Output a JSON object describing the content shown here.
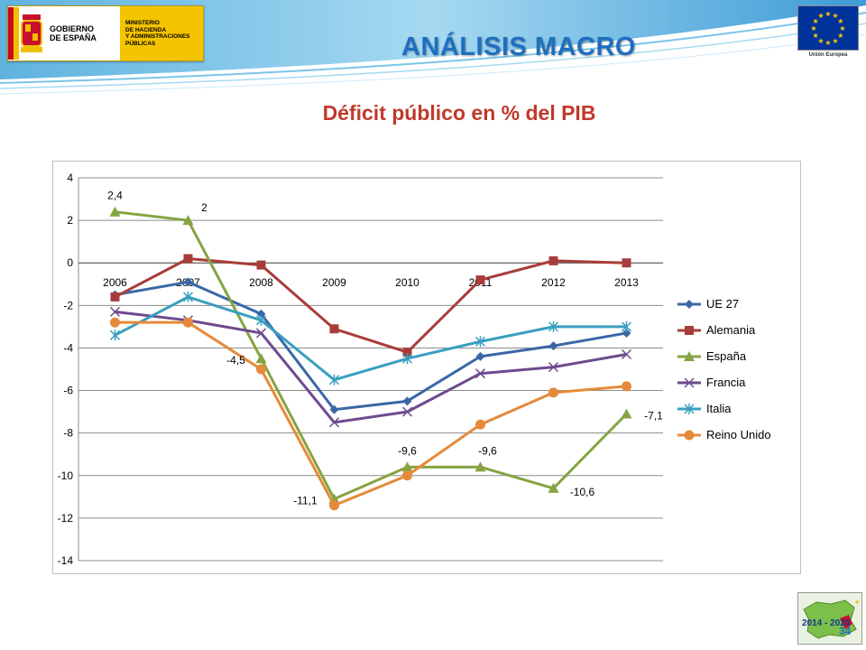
{
  "header": {
    "gov_logo_text1": "GOBIERNO\nDE ESPAÑA",
    "gov_logo_text2": "MINISTERIO\nDE HACIENDA\nY ADMINISTRACIONES\nPÚBLICAS",
    "eu_logo_caption": "Unión Europea",
    "title": "ANÁLISIS MACRO"
  },
  "subtitle": "Déficit público en % del PIB",
  "footer": {
    "badge_text": "2014 - 2020",
    "page_number": "34"
  },
  "chart_data": {
    "type": "line",
    "title": "",
    "xlabel": "",
    "ylabel": "",
    "categories": [
      "2006",
      "2007",
      "2008",
      "2009",
      "2010",
      "2011",
      "2012",
      "2013"
    ],
    "ylim": [
      -14,
      4
    ],
    "yticks": [
      4,
      2,
      0,
      -2,
      -4,
      -6,
      -8,
      -10,
      -12,
      -14
    ],
    "grid": true,
    "legend_position": "right",
    "series": [
      {
        "name": "UE 27",
        "color": "#3a67a6",
        "marker": "diamond",
        "values": [
          -1.5,
          -0.9,
          -2.4,
          -6.9,
          -6.5,
          -4.4,
          -3.9,
          -3.3
        ]
      },
      {
        "name": "Alemania",
        "color": "#a83c3a",
        "marker": "square",
        "values": [
          -1.6,
          0.2,
          -0.1,
          -3.1,
          -4.2,
          -0.8,
          0.1,
          0.0
        ]
      },
      {
        "name": "España",
        "color": "#86a442",
        "marker": "triangle",
        "values": [
          2.4,
          2.0,
          -4.5,
          -11.1,
          -9.6,
          -9.6,
          -10.6,
          -7.1
        ]
      },
      {
        "name": "Francia",
        "color": "#6e4a8e",
        "marker": "x",
        "values": [
          -2.3,
          -2.7,
          -3.3,
          -7.5,
          -7.0,
          -5.2,
          -4.9,
          -4.3
        ]
      },
      {
        "name": "Italia",
        "color": "#3a9fbf",
        "marker": "star",
        "values": [
          -3.4,
          -1.6,
          -2.7,
          -5.5,
          -4.5,
          -3.7,
          -3.0,
          -3.0
        ]
      },
      {
        "name": "Reino Unido",
        "color": "#e58a3a",
        "marker": "circle",
        "values": [
          -2.8,
          -2.8,
          -5.0,
          -11.4,
          -10.0,
          -7.6,
          -6.1,
          -5.8
        ]
      }
    ],
    "data_labels": [
      {
        "series": "España",
        "index": 0,
        "text": "2,4"
      },
      {
        "series": "España",
        "index": 1,
        "text": "2"
      },
      {
        "series": "España",
        "index": 2,
        "text": "-4,5"
      },
      {
        "series": "España",
        "index": 3,
        "text": "-11,1"
      },
      {
        "series": "España",
        "index": 4,
        "text": "-9,6"
      },
      {
        "series": "España",
        "index": 5,
        "text": "-9,6"
      },
      {
        "series": "España",
        "index": 6,
        "text": "-10,6"
      },
      {
        "series": "España",
        "index": 7,
        "text": "-7,1"
      }
    ]
  }
}
